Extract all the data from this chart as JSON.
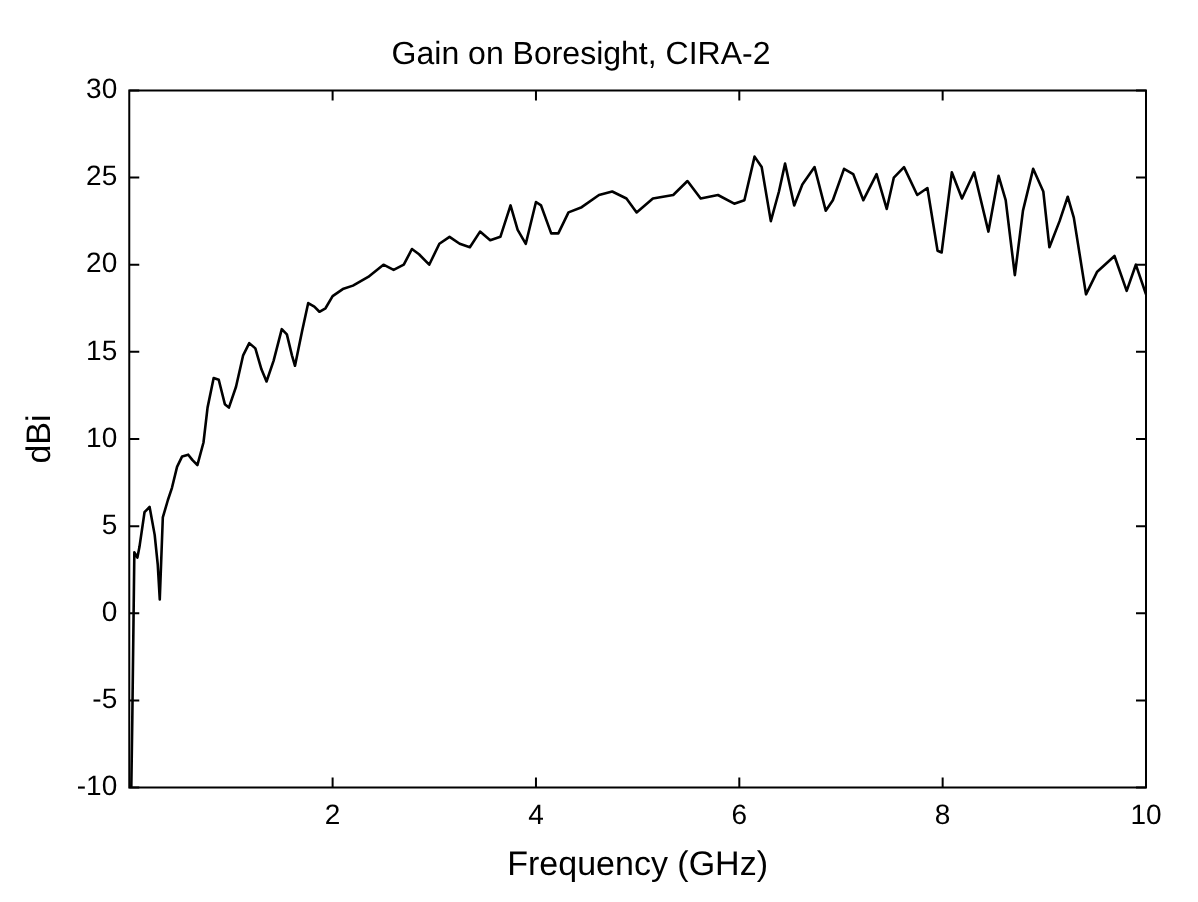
{
  "chart_data": {
    "type": "line",
    "title": "Gain on Boresight, CIRA-2",
    "xlabel": "Frequency (GHz)",
    "ylabel": "dBi",
    "xlim": [
      0,
      10
    ],
    "xticks": [
      2,
      4,
      6,
      8,
      10
    ],
    "ylim": [
      -10,
      30
    ],
    "yticks": [
      -10,
      -5,
      0,
      5,
      10,
      15,
      20,
      25,
      30
    ],
    "grid": false,
    "legend": false,
    "marker": "none",
    "line_style": "solid",
    "series": [
      {
        "color": "#000000",
        "x": [
          0.02,
          0.03,
          0.05,
          0.08,
          0.1,
          0.15,
          0.2,
          0.25,
          0.28,
          0.3,
          0.33,
          0.38,
          0.42,
          0.47,
          0.52,
          0.58,
          0.62,
          0.67,
          0.73,
          0.77,
          0.83,
          0.88,
          0.94,
          0.98,
          1.05,
          1.12,
          1.18,
          1.24,
          1.3,
          1.35,
          1.42,
          1.5,
          1.55,
          1.6,
          1.63,
          1.7,
          1.76,
          1.82,
          1.87,
          1.93,
          2.0,
          2.1,
          2.2,
          2.35,
          2.5,
          2.6,
          2.7,
          2.78,
          2.85,
          2.95,
          3.05,
          3.15,
          3.25,
          3.35,
          3.45,
          3.55,
          3.65,
          3.75,
          3.82,
          3.9,
          4.0,
          4.05,
          4.15,
          4.22,
          4.32,
          4.45,
          4.62,
          4.75,
          4.89,
          4.99,
          5.15,
          5.35,
          5.49,
          5.62,
          5.79,
          5.95,
          6.05,
          6.15,
          6.22,
          6.31,
          6.39,
          6.45,
          6.54,
          6.62,
          6.74,
          6.85,
          6.92,
          7.03,
          7.12,
          7.22,
          7.35,
          7.45,
          7.52,
          7.62,
          7.75,
          7.85,
          7.95,
          7.99,
          8.09,
          8.19,
          8.31,
          8.45,
          8.55,
          8.62,
          8.71,
          8.79,
          8.89,
          8.99,
          9.05,
          9.15,
          9.23,
          9.29,
          9.41,
          9.52,
          9.69,
          9.81,
          9.9,
          10.0
        ],
        "values": [
          -10,
          -6,
          3.5,
          3.2,
          3.8,
          5.8,
          6.1,
          4.5,
          2.8,
          0.8,
          5.5,
          6.5,
          7.2,
          8.4,
          9.0,
          9.1,
          8.8,
          8.5,
          9.8,
          11.8,
          13.5,
          13.4,
          12.0,
          11.8,
          13.0,
          14.8,
          15.5,
          15.2,
          14.0,
          13.3,
          14.5,
          16.3,
          16.0,
          14.8,
          14.2,
          16.2,
          17.8,
          17.6,
          17.3,
          17.5,
          18.2,
          18.6,
          18.8,
          19.3,
          20.0,
          19.7,
          20.0,
          20.9,
          20.6,
          20.0,
          21.2,
          21.6,
          21.2,
          21.0,
          21.9,
          21.4,
          21.6,
          23.4,
          22.0,
          21.2,
          23.6,
          23.4,
          21.8,
          21.8,
          23.0,
          23.3,
          24.0,
          24.2,
          23.8,
          23.0,
          23.8,
          24.0,
          24.8,
          23.8,
          24.0,
          23.5,
          23.7,
          26.2,
          25.6,
          22.5,
          24.2,
          25.8,
          23.4,
          24.6,
          25.6,
          23.1,
          23.7,
          25.5,
          25.2,
          23.7,
          25.2,
          23.2,
          25.0,
          25.6,
          24.0,
          24.4,
          20.8,
          20.7,
          25.3,
          23.8,
          25.3,
          21.9,
          25.1,
          23.7,
          19.4,
          23.1,
          25.5,
          24.2,
          21.0,
          22.5,
          23.9,
          22.7,
          18.3,
          19.6,
          20.5,
          18.5,
          20.0,
          18.3
        ]
      }
    ]
  }
}
